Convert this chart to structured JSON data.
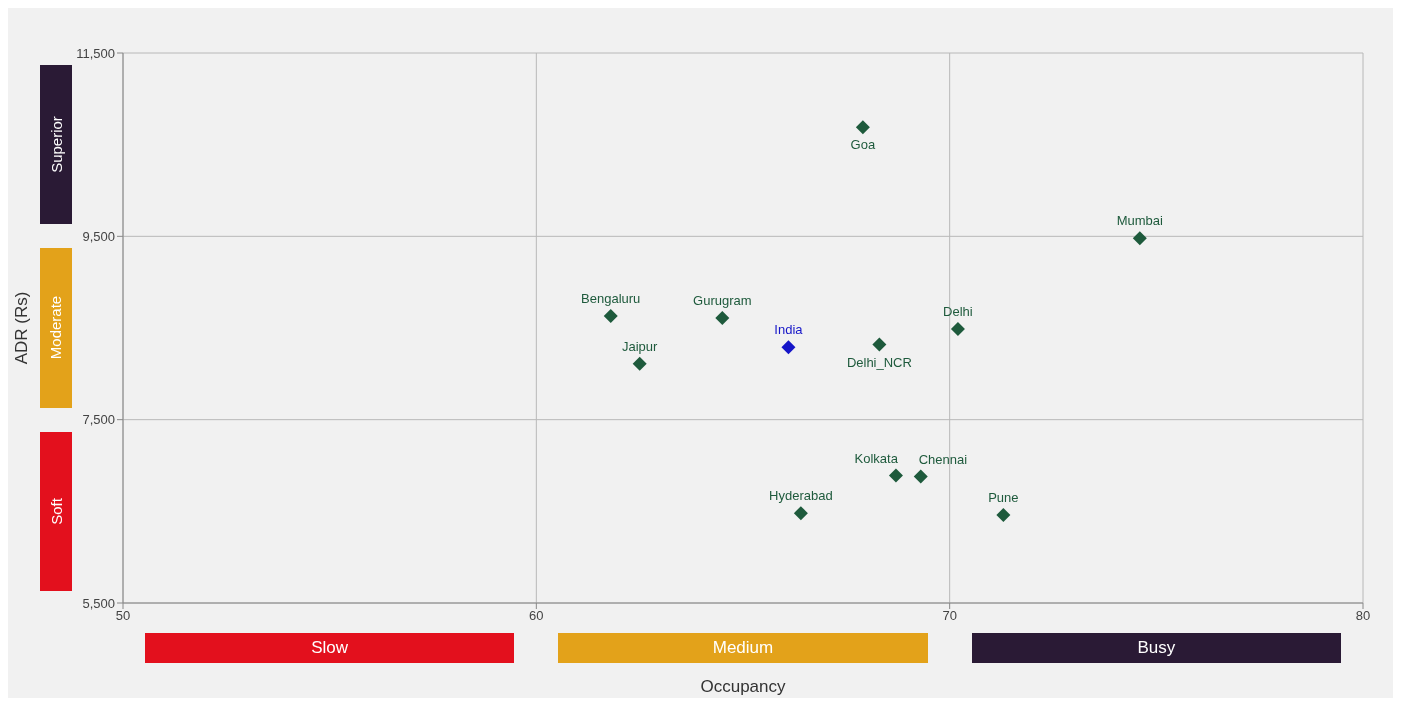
{
  "chart_data": {
    "type": "scatter",
    "xlabel": "Occupancy",
    "ylabel": "ADR (Rs)",
    "xlim": [
      50,
      80
    ],
    "xticks": [
      50,
      60,
      70,
      80
    ],
    "ylim": [
      5500,
      11500
    ],
    "yticks": [
      {
        "value": 5500,
        "label": "5,500"
      },
      {
        "value": 7500,
        "label": "7,500"
      },
      {
        "value": 9500,
        "label": "9,500"
      },
      {
        "value": 11500,
        "label": "11,500"
      }
    ],
    "grid": true,
    "legend": false,
    "marker": "diamond",
    "series": [
      {
        "name": "Goa",
        "color": "#1e5a3c",
        "x": [
          67.9
        ],
        "values": [
          10690
        ]
      },
      {
        "name": "Mumbai",
        "color": "#1e5a3c",
        "x": [
          74.6
        ],
        "values": [
          9480
        ]
      },
      {
        "name": "Bengaluru",
        "color": "#1e5a3c",
        "x": [
          61.8
        ],
        "values": [
          8630
        ]
      },
      {
        "name": "Gurugram",
        "color": "#1e5a3c",
        "x": [
          64.5
        ],
        "values": [
          8610
        ]
      },
      {
        "name": "India",
        "color": "#1515c8",
        "x": [
          66.1
        ],
        "values": [
          8290
        ]
      },
      {
        "name": "Delhi",
        "color": "#1e5a3c",
        "x": [
          70.2
        ],
        "values": [
          8490
        ]
      },
      {
        "name": "Jaipur",
        "color": "#1e5a3c",
        "x": [
          62.5
        ],
        "values": [
          8110
        ]
      },
      {
        "name": "Delhi_NCR",
        "color": "#1e5a3c",
        "x": [
          68.3
        ],
        "values": [
          8320
        ]
      },
      {
        "name": "Kolkata",
        "color": "#1e5a3c",
        "x": [
          68.7
        ],
        "values": [
          6890
        ]
      },
      {
        "name": "Chennai",
        "color": "#1e5a3c",
        "x": [
          69.3
        ],
        "values": [
          6880
        ]
      },
      {
        "name": "Hyderabad",
        "color": "#1e5a3c",
        "x": [
          66.4
        ],
        "values": [
          6480
        ]
      },
      {
        "name": "Pune",
        "color": "#1e5a3c",
        "x": [
          71.3
        ],
        "values": [
          6460
        ]
      }
    ],
    "annotations": [
      "Slow",
      "Medium",
      "Busy",
      "Soft",
      "Moderate",
      "Superior"
    ]
  }
}
